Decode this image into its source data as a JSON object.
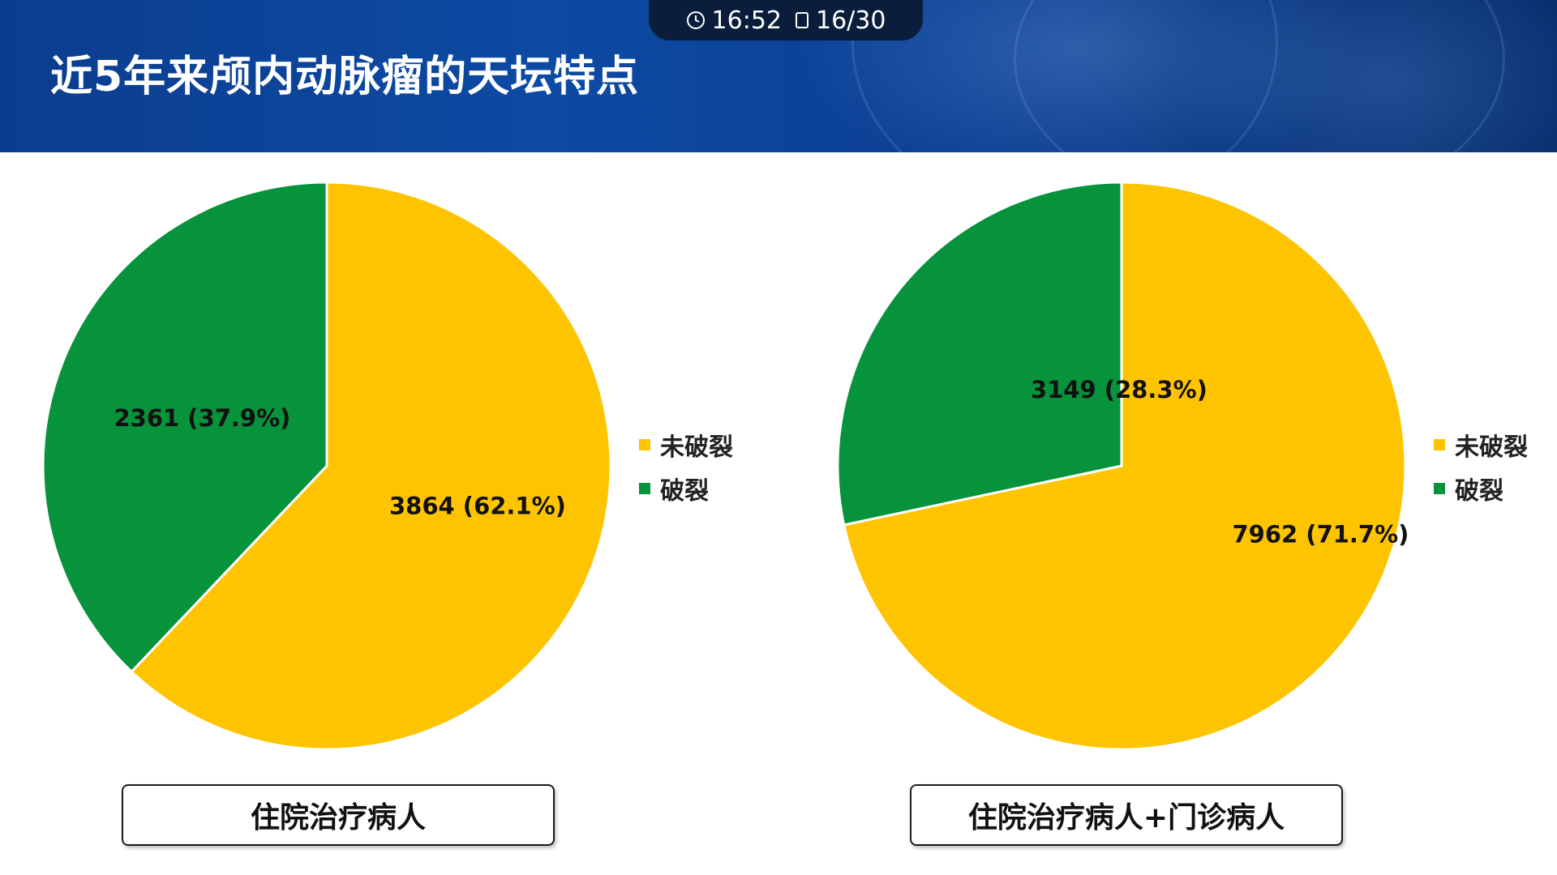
{
  "status_bar": {
    "time": "16:52",
    "page": "16/30"
  },
  "slide": {
    "title": "近5年来颅内动脉瘤的天坛特点"
  },
  "legend_labels": {
    "unruptured": "未破裂",
    "ruptured": "破裂"
  },
  "colors": {
    "unruptured": "#ffc400",
    "ruptured": "#07923c",
    "header_bg": "#0d4aa3"
  },
  "chart_data": [
    {
      "type": "pie",
      "caption": "住院治疗病人",
      "slices": [
        {
          "label": "未破裂",
          "value": 3864,
          "percent": 62.1,
          "data_label": "3864 (62.1%)",
          "color": "#ffc400"
        },
        {
          "label": "破裂",
          "value": 2361,
          "percent": 37.9,
          "data_label": "2361 (37.9%)",
          "color": "#07923c"
        }
      ],
      "legend": [
        "未破裂",
        "破裂"
      ],
      "legend_position": "right"
    },
    {
      "type": "pie",
      "caption": "住院治疗病人+门诊病人",
      "slices": [
        {
          "label": "未破裂",
          "value": 7962,
          "percent": 71.7,
          "data_label": "7962 (71.7%)",
          "color": "#ffc400"
        },
        {
          "label": "破裂",
          "value": 3149,
          "percent": 28.3,
          "data_label": "3149 (28.3%)",
          "color": "#07923c"
        }
      ],
      "legend": [
        "未破裂",
        "破裂"
      ],
      "legend_position": "right"
    }
  ]
}
